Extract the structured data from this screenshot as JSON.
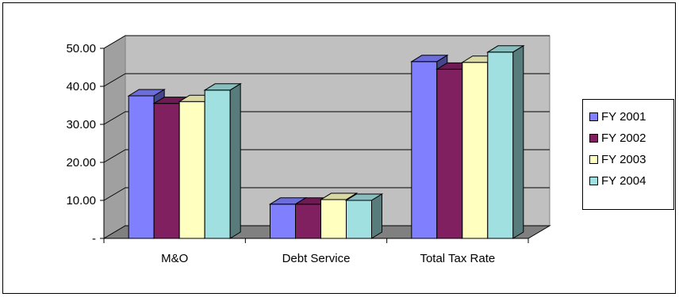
{
  "chart_data": {
    "type": "bar",
    "categories": [
      "M&O",
      "Debt Service",
      "Total Tax Rate"
    ],
    "series": [
      {
        "name": "FY 2001",
        "color": "#8080ff",
        "values": [
          37.5,
          9.0,
          46.5
        ]
      },
      {
        "name": "FY 2002",
        "color": "#802060",
        "values": [
          35.5,
          9.0,
          44.5
        ]
      },
      {
        "name": "FY 2003",
        "color": "#ffffc0",
        "values": [
          36.0,
          10.2,
          46.3
        ]
      },
      {
        "name": "FY 2004",
        "color": "#a0e0e0",
        "values": [
          39.0,
          10.0,
          49.0
        ]
      }
    ],
    "y_ticks": [
      "-",
      "10.00",
      "20.00",
      "30.00",
      "40.00",
      "50.00"
    ],
    "ylim": [
      0,
      50
    ],
    "grid": true,
    "style": "3d-clustered-column",
    "legend_position": "right"
  }
}
